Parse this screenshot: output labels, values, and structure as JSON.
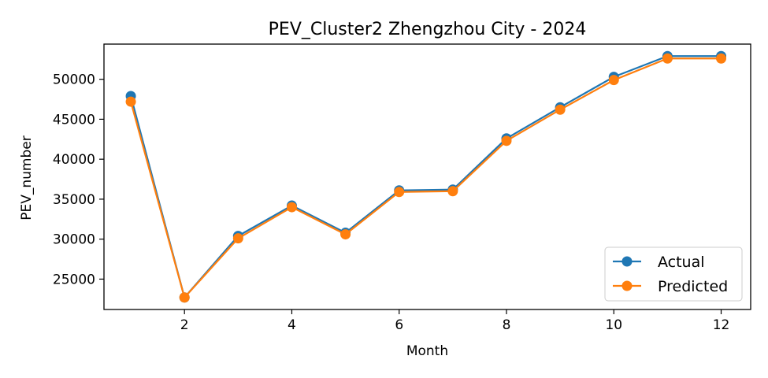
{
  "chart_data": {
    "type": "line",
    "title": "PEV_Cluster2 Zhengzhou City - 2024",
    "xlabel": "Month",
    "ylabel": "PEV_number",
    "x": [
      1,
      2,
      3,
      4,
      5,
      6,
      7,
      8,
      9,
      10,
      11,
      12
    ],
    "xlim": [
      0.5,
      12.55
    ],
    "ylim": [
      21200,
      54400
    ],
    "xticks": [
      2,
      4,
      6,
      8,
      10,
      12
    ],
    "yticks": [
      25000,
      30000,
      35000,
      40000,
      45000,
      50000
    ],
    "grid": false,
    "legend_position": "lower-right",
    "series": [
      {
        "name": "Actual",
        "color": "#1f77b4",
        "marker": "circle",
        "values": [
          47900,
          22700,
          30400,
          34200,
          30800,
          36100,
          36200,
          42600,
          46500,
          50300,
          52900,
          52900
        ]
      },
      {
        "name": "Predicted",
        "color": "#ff7f0e",
        "marker": "circle",
        "values": [
          47200,
          22700,
          30100,
          34000,
          30600,
          35900,
          36000,
          42300,
          46200,
          49900,
          52600,
          52600
        ]
      }
    ]
  }
}
